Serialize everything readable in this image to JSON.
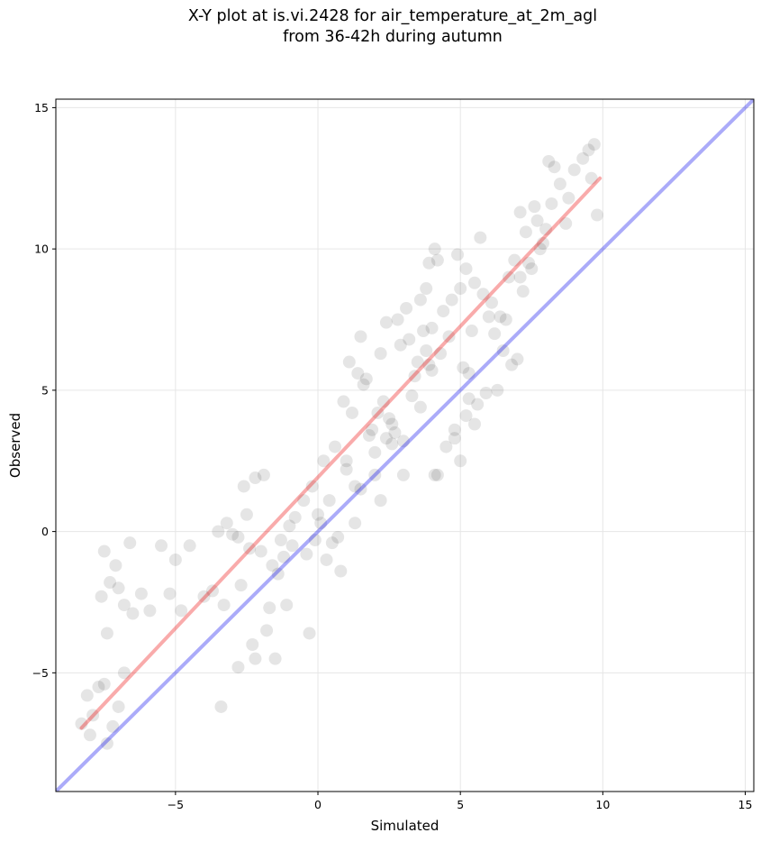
{
  "title": {
    "line1": "X-Y plot at is.vi.2428 for air_temperature_at_2m_agl",
    "line2": "from 36-42h during autumn"
  },
  "chart_data": {
    "type": "scatter",
    "title": "X-Y plot at is.vi.2428 for air_temperature_at_2m_agl\nfrom 36-42h during autumn",
    "xlabel": "Simulated",
    "ylabel": "Observed",
    "xlim": [
      -9.2,
      15.3
    ],
    "ylim": [
      -9.2,
      15.3
    ],
    "xticks": [
      -5,
      0,
      5,
      10,
      15
    ],
    "yticks": [
      -5,
      0,
      5,
      10,
      15
    ],
    "tick_labels": [
      "−5",
      "0",
      "5",
      "10",
      "15"
    ],
    "grid": true,
    "legend": "none",
    "colors": {
      "points": "#000000",
      "identity_line": "#0000ee",
      "fit_line": "#ee0000"
    },
    "series": [
      {
        "kind": "scatter",
        "x": [
          -8.3,
          -8.1,
          -7.9,
          -7.7,
          -7.5,
          -8.0,
          -7.2,
          -7.4,
          -7.0,
          -6.8,
          -7.6,
          -7.3,
          -7.5,
          -7.1,
          -6.6,
          -7.4,
          -7.0,
          -6.8,
          -6.5,
          -6.2,
          -5.9,
          -5.5,
          -5.0,
          -4.8,
          -4.5,
          -5.2,
          -4.0,
          -3.7,
          -3.5,
          -3.2,
          -3.0,
          -2.8,
          -2.5,
          -2.6,
          -2.2,
          -1.9,
          -3.3,
          -2.7,
          -2.4,
          -2.0,
          -1.6,
          -1.3,
          -1.0,
          -0.8,
          -3.4,
          -1.8,
          -1.5,
          -0.4,
          -0.3,
          -2.8,
          -2.3,
          -2.2,
          -1.7,
          -1.1,
          0.1,
          0.3,
          0.5,
          0.8,
          -0.2,
          0.2,
          0.6,
          1.0,
          1.5,
          1.8,
          2.0,
          1.2,
          0.9,
          1.6,
          2.4,
          2.7,
          3.0,
          2.3,
          1.7,
          1.1,
          1.4,
          2.2,
          2.9,
          3.2,
          3.5,
          3.7,
          3.8,
          4.0,
          3.3,
          3.6,
          2.6,
          2.0,
          1.3,
          4.2,
          4.5,
          4.8,
          5.2,
          4.0,
          4.4,
          4.7,
          5.0,
          3.9,
          4.1,
          4.9,
          5.5,
          5.8,
          6.0,
          6.2,
          6.5,
          5.3,
          5.6,
          5.9,
          6.3,
          6.8,
          7.0,
          6.6,
          7.2,
          7.5,
          7.8,
          8.0,
          7.3,
          7.7,
          7.9,
          6.9,
          7.1,
          7.6,
          8.2,
          8.5,
          8.8,
          9.0,
          9.3,
          9.5,
          9.7,
          9.6,
          9.8,
          8.7,
          8.1,
          3.4,
          4.3,
          4.6,
          5.1,
          5.4,
          4.2,
          2.8,
          3.1,
          3.6,
          3.9,
          2.5,
          2.1,
          1.9,
          2.6,
          1.0,
          0.4,
          0.0,
          -0.5,
          -0.9,
          -1.2,
          -1.4,
          6.1,
          6.7,
          7.4,
          5.7,
          4.8,
          3.0,
          2.2,
          1.3,
          0.7,
          -0.1,
          5.0,
          5.3,
          5.5,
          4.1,
          6.4,
          7.1,
          8.3,
          5.2,
          3.8,
          2.4,
          1.5
        ],
        "y": [
          -6.8,
          -5.8,
          -6.5,
          -5.5,
          -5.4,
          -7.2,
          -6.9,
          -7.5,
          -6.2,
          -5.0,
          -2.3,
          -1.8,
          -0.7,
          -1.2,
          -0.4,
          -3.6,
          -2.0,
          -2.6,
          -2.9,
          -2.2,
          -2.8,
          -0.5,
          -1.0,
          -2.8,
          -0.5,
          -2.2,
          -2.3,
          -2.1,
          0.0,
          0.3,
          -0.1,
          -0.2,
          0.6,
          1.6,
          1.9,
          2.0,
          -2.6,
          -1.9,
          -0.6,
          -0.7,
          -1.2,
          -0.3,
          0.2,
          0.5,
          -6.2,
          -3.5,
          -4.5,
          -0.8,
          -3.6,
          -4.8,
          -4.0,
          -4.5,
          -2.7,
          -2.6,
          0.3,
          -1.0,
          -0.4,
          -1.4,
          1.6,
          2.5,
          3.0,
          2.2,
          1.5,
          3.4,
          2.0,
          4.2,
          4.6,
          5.2,
          3.3,
          3.5,
          3.2,
          4.6,
          5.4,
          6.0,
          5.6,
          6.3,
          6.6,
          6.8,
          6.0,
          7.1,
          6.4,
          5.7,
          4.8,
          4.4,
          3.8,
          2.8,
          1.6,
          2.0,
          3.0,
          3.6,
          4.1,
          7.2,
          7.8,
          8.2,
          8.6,
          9.5,
          10.0,
          9.8,
          8.8,
          8.4,
          7.6,
          7.0,
          6.4,
          5.6,
          4.5,
          4.9,
          5.0,
          5.9,
          6.1,
          7.5,
          8.5,
          9.3,
          10.0,
          10.7,
          10.6,
          11.0,
          10.2,
          9.6,
          9.0,
          11.5,
          11.6,
          12.3,
          11.8,
          12.8,
          13.2,
          13.5,
          13.7,
          12.5,
          11.2,
          10.9,
          13.1,
          5.5,
          6.3,
          6.9,
          5.8,
          7.1,
          9.6,
          7.5,
          7.9,
          8.2,
          5.9,
          4.0,
          4.2,
          3.6,
          3.1,
          2.5,
          1.1,
          0.6,
          1.1,
          -0.5,
          -0.9,
          -1.5,
          8.1,
          9.0,
          9.5,
          10.4,
          3.3,
          2.0,
          1.1,
          0.3,
          -0.2,
          -0.3,
          2.5,
          4.7,
          3.8,
          2.0,
          7.6,
          11.3,
          12.9,
          9.3,
          8.6,
          7.4,
          6.9
        ]
      },
      {
        "kind": "line",
        "name": "",
        "role": "identity",
        "x": [
          -9.2,
          15.3
        ],
        "y": [
          -9.2,
          15.3
        ]
      },
      {
        "kind": "line",
        "name": "",
        "role": "fit",
        "x": [
          -8.3,
          9.9
        ],
        "y": [
          -6.95,
          12.5
        ]
      }
    ]
  }
}
